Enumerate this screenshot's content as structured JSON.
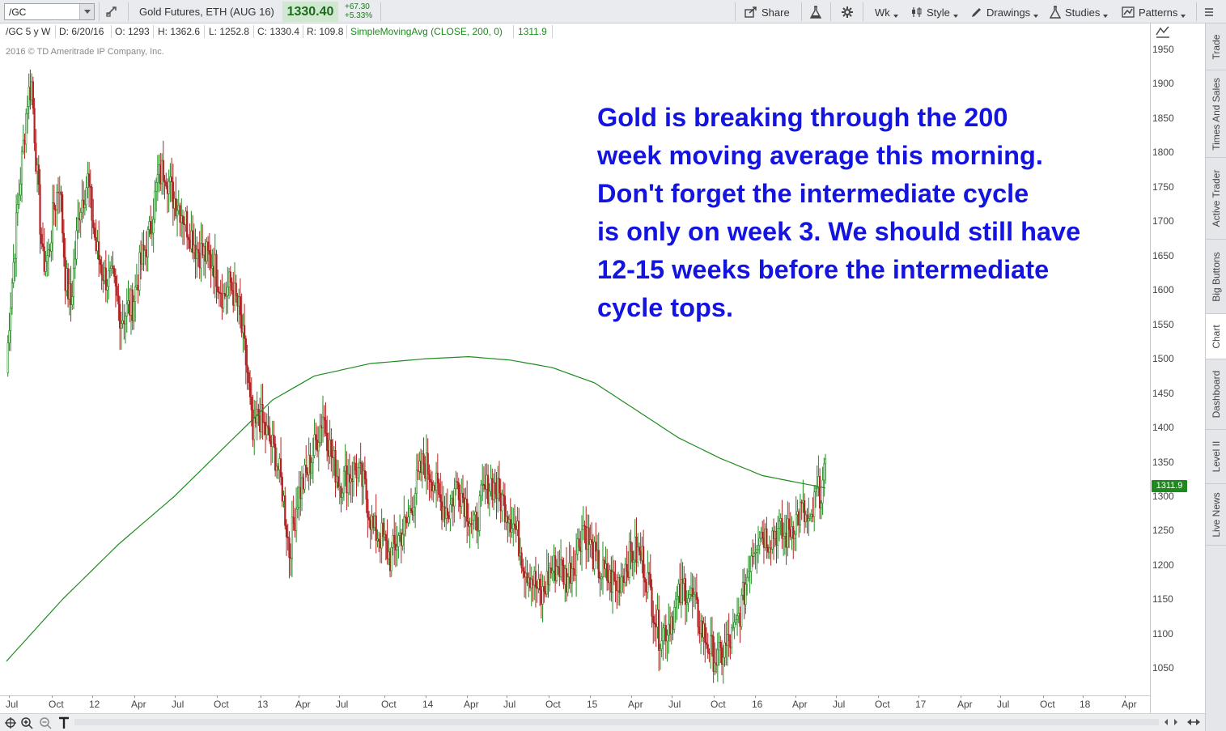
{
  "toolbar": {
    "symbol": "/GC",
    "description": "Gold Futures, ETH (AUG 16)",
    "last_price": "1330.40",
    "change_abs": "+67.30",
    "change_pct": "+5.33%",
    "share_label": "Share",
    "period_label": "Wk",
    "style_label": "Style",
    "drawings_label": "Drawings",
    "studies_label": "Studies",
    "patterns_label": "Patterns",
    "accent_color": "#1c6b1c"
  },
  "infobar": {
    "spec": "/GC 5 y W",
    "date": "D: 6/20/16",
    "open": "O: 1293",
    "high": "H: 1362.6",
    "low": "L: 1252.8",
    "close": "C: 1330.4",
    "range": "R: 109.8",
    "study": "SimpleMovingAvg (CLOSE, 200, 0)",
    "study_value": "1311.9",
    "study_color": "#1e8c1e"
  },
  "copyright": "2016 © TD Ameritrade IP Company, Inc.",
  "annotation": {
    "lines": [
      "Gold is breaking through the 200",
      "week moving average this morning.",
      "Don't forget the intermediate cycle",
      "is only on week 3. We should still have",
      "12-15 weeks before the intermediate",
      "cycle tops."
    ],
    "color": "#1414e0"
  },
  "price_tag": "1311.9",
  "y_axis": [
    "1950",
    "1900",
    "1850",
    "1800",
    "1750",
    "1700",
    "1650",
    "1600",
    "1550",
    "1500",
    "1450",
    "1400",
    "1350",
    "1300",
    "1250",
    "1200",
    "1150",
    "1100",
    "1050"
  ],
  "x_axis": [
    "Jul",
    "Oct",
    "12",
    "Apr",
    "Jul",
    "Oct",
    "13",
    "Apr",
    "Jul",
    "Oct",
    "14",
    "Apr",
    "Jul",
    "Oct",
    "15",
    "Apr",
    "Jul",
    "Oct",
    "16",
    "Apr",
    "Jul",
    "Oct",
    "17",
    "Apr",
    "Jul",
    "Oct",
    "18",
    "Apr"
  ],
  "side_tabs": [
    "Trade",
    "Times And Sales",
    "Active Trader",
    "Big Buttons",
    "Chart",
    "Dashboard",
    "Level II",
    "Live News"
  ],
  "chart_data": {
    "type": "candlestick",
    "price_key_points": [
      [
        0,
        1480
      ],
      [
        2,
        1560
      ],
      [
        5,
        1640
      ],
      [
        8,
        1720
      ],
      [
        12,
        1810
      ],
      [
        15,
        1880
      ],
      [
        18,
        1900
      ],
      [
        22,
        1760
      ],
      [
        26,
        1640
      ],
      [
        30,
        1650
      ],
      [
        34,
        1720
      ],
      [
        38,
        1760
      ],
      [
        42,
        1620
      ],
      [
        46,
        1580
      ],
      [
        52,
        1720
      ],
      [
        58,
        1760
      ],
      [
        64,
        1660
      ],
      [
        70,
        1620
      ],
      [
        76,
        1610
      ],
      [
        82,
        1560
      ],
      [
        90,
        1580
      ],
      [
        96,
        1640
      ],
      [
        102,
        1680
      ],
      [
        108,
        1760
      ],
      [
        113,
        1780
      ],
      [
        118,
        1740
      ],
      [
        124,
        1720
      ],
      [
        130,
        1690
      ],
      [
        136,
        1660
      ],
      [
        142,
        1650
      ],
      [
        148,
        1640
      ],
      [
        155,
        1590
      ],
      [
        160,
        1610
      ],
      [
        166,
        1570
      ],
      [
        172,
        1480
      ],
      [
        176,
        1380
      ],
      [
        180,
        1420
      ],
      [
        186,
        1390
      ],
      [
        192,
        1360
      ],
      [
        197,
        1310
      ],
      [
        202,
        1220
      ],
      [
        208,
        1300
      ],
      [
        214,
        1330
      ],
      [
        220,
        1370
      ],
      [
        226,
        1420
      ],
      [
        232,
        1360
      ],
      [
        238,
        1320
      ],
      [
        244,
        1330
      ],
      [
        250,
        1340
      ],
      [
        256,
        1310
      ],
      [
        262,
        1250
      ],
      [
        268,
        1240
      ],
      [
        274,
        1210
      ],
      [
        280,
        1240
      ],
      [
        286,
        1260
      ],
      [
        292,
        1310
      ],
      [
        298,
        1350
      ],
      [
        304,
        1330
      ],
      [
        310,
        1290
      ],
      [
        316,
        1280
      ],
      [
        322,
        1320
      ],
      [
        328,
        1290
      ],
      [
        334,
        1250
      ],
      [
        340,
        1300
      ],
      [
        346,
        1320
      ],
      [
        352,
        1300
      ],
      [
        358,
        1280
      ],
      [
        364,
        1250
      ],
      [
        370,
        1200
      ],
      [
        376,
        1180
      ],
      [
        382,
        1150
      ],
      [
        388,
        1190
      ],
      [
        394,
        1200
      ],
      [
        400,
        1180
      ],
      [
        406,
        1210
      ],
      [
        412,
        1260
      ],
      [
        418,
        1220
      ],
      [
        424,
        1190
      ],
      [
        430,
        1180
      ],
      [
        436,
        1170
      ],
      [
        442,
        1200
      ],
      [
        448,
        1220
      ],
      [
        454,
        1210
      ],
      [
        460,
        1160
      ],
      [
        466,
        1100
      ],
      [
        472,
        1110
      ],
      [
        478,
        1140
      ],
      [
        484,
        1170
      ],
      [
        490,
        1150
      ],
      [
        496,
        1110
      ],
      [
        502,
        1080
      ],
      [
        508,
        1060
      ],
      [
        514,
        1080
      ],
      [
        520,
        1100
      ],
      [
        526,
        1150
      ],
      [
        532,
        1220
      ],
      [
        538,
        1250
      ],
      [
        544,
        1240
      ],
      [
        550,
        1250
      ],
      [
        556,
        1240
      ],
      [
        562,
        1260
      ],
      [
        568,
        1280
      ],
      [
        574,
        1250
      ],
      [
        578,
        1300
      ],
      [
        582,
        1310
      ],
      [
        585,
        1330
      ]
    ],
    "sma_key_points": [
      [
        0,
        1060
      ],
      [
        40,
        1150
      ],
      [
        80,
        1230
      ],
      [
        120,
        1300
      ],
      [
        160,
        1380
      ],
      [
        190,
        1440
      ],
      [
        220,
        1475
      ],
      [
        260,
        1493
      ],
      [
        300,
        1500
      ],
      [
        330,
        1503
      ],
      [
        360,
        1498
      ],
      [
        390,
        1487
      ],
      [
        420,
        1465
      ],
      [
        450,
        1425
      ],
      [
        480,
        1385
      ],
      [
        510,
        1355
      ],
      [
        540,
        1330
      ],
      [
        570,
        1318
      ],
      [
        585,
        1312
      ]
    ],
    "y_range": [
      1020,
      1980
    ],
    "bull_color": "#1e8c1e",
    "bear_color": "#b22222",
    "sma_color": "#1e8c1e"
  }
}
